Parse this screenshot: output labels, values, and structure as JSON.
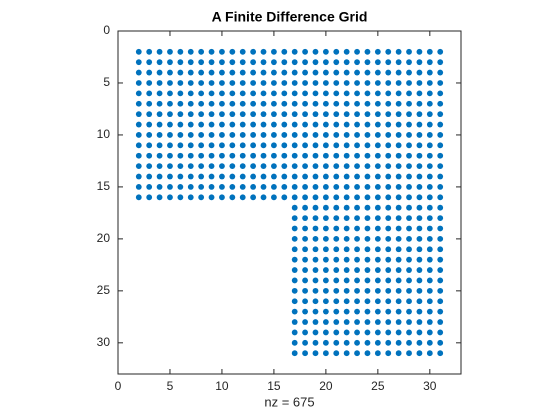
{
  "chart_data": {
    "type": "scatter",
    "title": "A Finite Difference Grid",
    "x_label": "nz = 675",
    "color": "#0072bd",
    "xlim": [
      0,
      33
    ],
    "ylim": [
      33,
      0
    ],
    "xticks": [
      0,
      5,
      10,
      15,
      20,
      25,
      30
    ],
    "yticks": [
      0,
      5,
      10,
      15,
      20,
      25,
      30
    ],
    "grid": false,
    "x": [
      2,
      3,
      4,
      5,
      6,
      7,
      8,
      9,
      10,
      11,
      12,
      13,
      14,
      15,
      16,
      17,
      18,
      19,
      20,
      21,
      22,
      23,
      24,
      25,
      26,
      27,
      28,
      29,
      30,
      31,
      2,
      3,
      4,
      5,
      6,
      7,
      8,
      9,
      10,
      11,
      12,
      13,
      14,
      15,
      16,
      17,
      18,
      19,
      20,
      21,
      22,
      23,
      24,
      25,
      26,
      27,
      28,
      29,
      30,
      31,
      2,
      3,
      4,
      5,
      6,
      7,
      8,
      9,
      10,
      11,
      12,
      13,
      14,
      15,
      16,
      17,
      18,
      19,
      20,
      21,
      22,
      23,
      24,
      25,
      26,
      27,
      28,
      29,
      30,
      31,
      2,
      3,
      4,
      5,
      6,
      7,
      8,
      9,
      10,
      11,
      12,
      13,
      14,
      15,
      16,
      17,
      18,
      19,
      20,
      21,
      22,
      23,
      24,
      25,
      26,
      27,
      28,
      29,
      30,
      31,
      2,
      3,
      4,
      5,
      6,
      7,
      8,
      9,
      10,
      11,
      12,
      13,
      14,
      15,
      16,
      17,
      18,
      19,
      20,
      21,
      22,
      23,
      24,
      25,
      26,
      27,
      28,
      29,
      30,
      31,
      2,
      3,
      4,
      5,
      6,
      7,
      8,
      9,
      10,
      11,
      12,
      13,
      14,
      15,
      16,
      17,
      18,
      19,
      20,
      21,
      22,
      23,
      24,
      25,
      26,
      27,
      28,
      29,
      30,
      31,
      2,
      3,
      4,
      5,
      6,
      7,
      8,
      9,
      10,
      11,
      12,
      13,
      14,
      15,
      16,
      17,
      18,
      19,
      20,
      21,
      22,
      23,
      24,
      25,
      26,
      27,
      28,
      29,
      30,
      31,
      2,
      3,
      4,
      5,
      6,
      7,
      8,
      9,
      10,
      11,
      12,
      13,
      14,
      15,
      16,
      17,
      18,
      19,
      20,
      21,
      22,
      23,
      24,
      25,
      26,
      27,
      28,
      29,
      30,
      31,
      2,
      3,
      4,
      5,
      6,
      7,
      8,
      9,
      10,
      11,
      12,
      13,
      14,
      15,
      16,
      17,
      18,
      19,
      20,
      21,
      22,
      23,
      24,
      25,
      26,
      27,
      28,
      29,
      30,
      31,
      2,
      3,
      4,
      5,
      6,
      7,
      8,
      9,
      10,
      11,
      12,
      13,
      14,
      15,
      16,
      17,
      18,
      19,
      20,
      21,
      22,
      23,
      24,
      25,
      26,
      27,
      28,
      29,
      30,
      31,
      2,
      3,
      4,
      5,
      6,
      7,
      8,
      9,
      10,
      11,
      12,
      13,
      14,
      15,
      16,
      17,
      18,
      19,
      20,
      21,
      22,
      23,
      24,
      25,
      26,
      27,
      28,
      29,
      30,
      31,
      2,
      3,
      4,
      5,
      6,
      7,
      8,
      9,
      10,
      11,
      12,
      13,
      14,
      15,
      16,
      17,
      18,
      19,
      20,
      21,
      22,
      23,
      24,
      25,
      26,
      27,
      28,
      29,
      30,
      31,
      2,
      3,
      4,
      5,
      6,
      7,
      8,
      9,
      10,
      11,
      12,
      13,
      14,
      15,
      16,
      17,
      18,
      19,
      20,
      21,
      22,
      23,
      24,
      25,
      26,
      27,
      28,
      29,
      30,
      31,
      2,
      3,
      4,
      5,
      6,
      7,
      8,
      9,
      10,
      11,
      12,
      13,
      14,
      15,
      16,
      17,
      18,
      19,
      20,
      21,
      22,
      23,
      24,
      25,
      26,
      27,
      28,
      29,
      30,
      31,
      2,
      3,
      4,
      5,
      6,
      7,
      8,
      9,
      10,
      11,
      12,
      13,
      14,
      15,
      16,
      17,
      18,
      19,
      20,
      21,
      22,
      23,
      24,
      25,
      26,
      27,
      28,
      29,
      30,
      31,
      17,
      18,
      19,
      20,
      21,
      22,
      23,
      24,
      25,
      26,
      27,
      28,
      29,
      30,
      31,
      17,
      18,
      19,
      20,
      21,
      22,
      23,
      24,
      25,
      26,
      27,
      28,
      29,
      30,
      31,
      17,
      18,
      19,
      20,
      21,
      22,
      23,
      24,
      25,
      26,
      27,
      28,
      29,
      30,
      31,
      17,
      18,
      19,
      20,
      21,
      22,
      23,
      24,
      25,
      26,
      27,
      28,
      29,
      30,
      31,
      17,
      18,
      19,
      20,
      21,
      22,
      23,
      24,
      25,
      26,
      27,
      28,
      29,
      30,
      31,
      17,
      18,
      19,
      20,
      21,
      22,
      23,
      24,
      25,
      26,
      27,
      28,
      29,
      30,
      31,
      17,
      18,
      19,
      20,
      21,
      22,
      23,
      24,
      25,
      26,
      27,
      28,
      29,
      30,
      31,
      17,
      18,
      19,
      20,
      21,
      22,
      23,
      24,
      25,
      26,
      27,
      28,
      29,
      30,
      31,
      17,
      18,
      19,
      20,
      21,
      22,
      23,
      24,
      25,
      26,
      27,
      28,
      29,
      30,
      31,
      17,
      18,
      19,
      20,
      21,
      22,
      23,
      24,
      25,
      26,
      27,
      28,
      29,
      30,
      31,
      17,
      18,
      19,
      20,
      21,
      22,
      23,
      24,
      25,
      26,
      27,
      28,
      29,
      30,
      31,
      17,
      18,
      19,
      20,
      21,
      22,
      23,
      24,
      25,
      26,
      27,
      28,
      29,
      30,
      31,
      17,
      18,
      19,
      20,
      21,
      22,
      23,
      24,
      25,
      26,
      27,
      28,
      29,
      30,
      31,
      17,
      18,
      19,
      20,
      21,
      22,
      23,
      24,
      25,
      26,
      27,
      28,
      29,
      30,
      31,
      17,
      18,
      19,
      20,
      21,
      22,
      23,
      24,
      25,
      26,
      27,
      28,
      29,
      30,
      31
    ],
    "y": [
      2,
      2,
      2,
      2,
      2,
      2,
      2,
      2,
      2,
      2,
      2,
      2,
      2,
      2,
      2,
      2,
      2,
      2,
      2,
      2,
      2,
      2,
      2,
      2,
      2,
      2,
      2,
      2,
      2,
      2,
      3,
      3,
      3,
      3,
      3,
      3,
      3,
      3,
      3,
      3,
      3,
      3,
      3,
      3,
      3,
      3,
      3,
      3,
      3,
      3,
      3,
      3,
      3,
      3,
      3,
      3,
      3,
      3,
      3,
      3,
      4,
      4,
      4,
      4,
      4,
      4,
      4,
      4,
      4,
      4,
      4,
      4,
      4,
      4,
      4,
      4,
      4,
      4,
      4,
      4,
      4,
      4,
      4,
      4,
      4,
      4,
      4,
      4,
      4,
      4,
      5,
      5,
      5,
      5,
      5,
      5,
      5,
      5,
      5,
      5,
      5,
      5,
      5,
      5,
      5,
      5,
      5,
      5,
      5,
      5,
      5,
      5,
      5,
      5,
      5,
      5,
      5,
      5,
      5,
      5,
      6,
      6,
      6,
      6,
      6,
      6,
      6,
      6,
      6,
      6,
      6,
      6,
      6,
      6,
      6,
      6,
      6,
      6,
      6,
      6,
      6,
      6,
      6,
      6,
      6,
      6,
      6,
      6,
      6,
      6,
      7,
      7,
      7,
      7,
      7,
      7,
      7,
      7,
      7,
      7,
      7,
      7,
      7,
      7,
      7,
      7,
      7,
      7,
      7,
      7,
      7,
      7,
      7,
      7,
      7,
      7,
      7,
      7,
      7,
      7,
      8,
      8,
      8,
      8,
      8,
      8,
      8,
      8,
      8,
      8,
      8,
      8,
      8,
      8,
      8,
      8,
      8,
      8,
      8,
      8,
      8,
      8,
      8,
      8,
      8,
      8,
      8,
      8,
      8,
      8,
      9,
      9,
      9,
      9,
      9,
      9,
      9,
      9,
      9,
      9,
      9,
      9,
      9,
      9,
      9,
      9,
      9,
      9,
      9,
      9,
      9,
      9,
      9,
      9,
      9,
      9,
      9,
      9,
      9,
      9,
      10,
      10,
      10,
      10,
      10,
      10,
      10,
      10,
      10,
      10,
      10,
      10,
      10,
      10,
      10,
      10,
      10,
      10,
      10,
      10,
      10,
      10,
      10,
      10,
      10,
      10,
      10,
      10,
      10,
      10,
      11,
      11,
      11,
      11,
      11,
      11,
      11,
      11,
      11,
      11,
      11,
      11,
      11,
      11,
      11,
      11,
      11,
      11,
      11,
      11,
      11,
      11,
      11,
      11,
      11,
      11,
      11,
      11,
      11,
      11,
      12,
      12,
      12,
      12,
      12,
      12,
      12,
      12,
      12,
      12,
      12,
      12,
      12,
      12,
      12,
      12,
      12,
      12,
      12,
      12,
      12,
      12,
      12,
      12,
      12,
      12,
      12,
      12,
      12,
      12,
      13,
      13,
      13,
      13,
      13,
      13,
      13,
      13,
      13,
      13,
      13,
      13,
      13,
      13,
      13,
      13,
      13,
      13,
      13,
      13,
      13,
      13,
      13,
      13,
      13,
      13,
      13,
      13,
      13,
      13,
      14,
      14,
      14,
      14,
      14,
      14,
      14,
      14,
      14,
      14,
      14,
      14,
      14,
      14,
      14,
      14,
      14,
      14,
      14,
      14,
      14,
      14,
      14,
      14,
      14,
      14,
      14,
      14,
      14,
      14,
      15,
      15,
      15,
      15,
      15,
      15,
      15,
      15,
      15,
      15,
      15,
      15,
      15,
      15,
      15,
      15,
      15,
      15,
      15,
      15,
      15,
      15,
      15,
      15,
      15,
      15,
      15,
      15,
      15,
      15,
      16,
      16,
      16,
      16,
      16,
      16,
      16,
      16,
      16,
      16,
      16,
      16,
      16,
      16,
      16,
      16,
      16,
      16,
      16,
      16,
      16,
      16,
      16,
      16,
      16,
      16,
      16,
      16,
      16,
      16,
      17,
      17,
      17,
      17,
      17,
      17,
      17,
      17,
      17,
      17,
      17,
      17,
      17,
      17,
      17,
      18,
      18,
      18,
      18,
      18,
      18,
      18,
      18,
      18,
      18,
      18,
      18,
      18,
      18,
      18,
      19,
      19,
      19,
      19,
      19,
      19,
      19,
      19,
      19,
      19,
      19,
      19,
      19,
      19,
      19,
      20,
      20,
      20,
      20,
      20,
      20,
      20,
      20,
      20,
      20,
      20,
      20,
      20,
      20,
      20,
      21,
      21,
      21,
      21,
      21,
      21,
      21,
      21,
      21,
      21,
      21,
      21,
      21,
      21,
      21,
      22,
      22,
      22,
      22,
      22,
      22,
      22,
      22,
      22,
      22,
      22,
      22,
      22,
      22,
      22,
      23,
      23,
      23,
      23,
      23,
      23,
      23,
      23,
      23,
      23,
      23,
      23,
      23,
      23,
      23,
      24,
      24,
      24,
      24,
      24,
      24,
      24,
      24,
      24,
      24,
      24,
      24,
      24,
      24,
      24,
      25,
      25,
      25,
      25,
      25,
      25,
      25,
      25,
      25,
      25,
      25,
      25,
      25,
      25,
      25,
      26,
      26,
      26,
      26,
      26,
      26,
      26,
      26,
      26,
      26,
      26,
      26,
      26,
      26,
      26,
      27,
      27,
      27,
      27,
      27,
      27,
      27,
      27,
      27,
      27,
      27,
      27,
      27,
      27,
      27,
      28,
      28,
      28,
      28,
      28,
      28,
      28,
      28,
      28,
      28,
      28,
      28,
      28,
      28,
      28,
      29,
      29,
      29,
      29,
      29,
      29,
      29,
      29,
      29,
      29,
      29,
      29,
      29,
      29,
      29,
      30,
      30,
      30,
      30,
      30,
      30,
      30,
      30,
      30,
      30,
      30,
      30,
      30,
      30,
      30,
      31,
      31,
      31,
      31,
      31,
      31,
      31,
      31,
      31,
      31,
      31,
      31,
      31,
      31,
      31
    ]
  }
}
